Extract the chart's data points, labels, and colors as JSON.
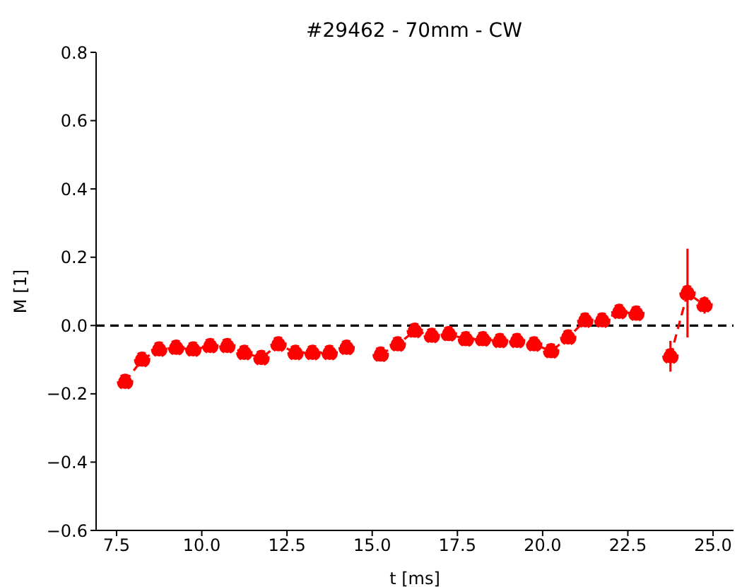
{
  "chart_data": {
    "type": "line",
    "title": "#29462 - 70mm - CW",
    "xlabel": "t [ms]",
    "ylabel": "M [1]",
    "x": [
      7.75,
      8.25,
      8.75,
      9.25,
      9.75,
      10.25,
      10.75,
      11.25,
      11.75,
      12.25,
      12.75,
      13.25,
      13.75,
      14.25,
      14.75,
      15.25,
      15.75,
      16.25,
      16.75,
      17.25,
      17.75,
      18.25,
      18.75,
      19.25,
      19.75,
      20.25,
      20.75,
      21.25,
      21.75,
      22.25,
      22.75,
      23.25,
      23.75,
      24.25,
      24.75
    ],
    "series": [
      {
        "color": "#ff0000",
        "values": [
          -0.165,
          -0.1,
          -0.07,
          -0.065,
          -0.07,
          -0.06,
          -0.06,
          -0.08,
          -0.095,
          -0.055,
          -0.08,
          -0.08,
          -0.08,
          -0.065,
          null,
          -0.085,
          -0.055,
          -0.015,
          -0.03,
          -0.025,
          -0.04,
          -0.04,
          -0.045,
          -0.045,
          -0.055,
          -0.075,
          -0.035,
          0.015,
          0.015,
          0.04,
          0.035,
          null,
          -0.09,
          0.095,
          0.06
        ],
        "errors": [
          null,
          null,
          null,
          null,
          null,
          null,
          null,
          null,
          null,
          null,
          null,
          null,
          null,
          null,
          null,
          null,
          null,
          null,
          null,
          null,
          null,
          null,
          null,
          null,
          null,
          null,
          null,
          null,
          null,
          null,
          null,
          null,
          0.045,
          0.13,
          0.025
        ]
      }
    ],
    "xlim": [
      6.9,
      25.6
    ],
    "xticks": [
      {
        "value": 7.5,
        "label": "7.5"
      },
      {
        "value": 10,
        "label": "10.0"
      },
      {
        "value": 12.5,
        "label": "12.5"
      },
      {
        "value": 15,
        "label": "15.0"
      },
      {
        "value": 17.5,
        "label": "17.5"
      },
      {
        "value": 20,
        "label": "20.0"
      },
      {
        "value": 22.5,
        "label": "22.5"
      },
      {
        "value": 25,
        "label": "25.0"
      }
    ],
    "ylim": [
      -0.6,
      0.8
    ],
    "yticks": [
      {
        "value": -0.6,
        "label": "−0.6"
      },
      {
        "value": -0.4,
        "label": "−0.4"
      },
      {
        "value": -0.2,
        "label": "−0.2"
      },
      {
        "value": 0,
        "label": "0.0"
      },
      {
        "value": 0.2,
        "label": "0.2"
      },
      {
        "value": 0.4,
        "label": "0.4"
      },
      {
        "value": 0.6,
        "label": "0.6"
      },
      {
        "value": 0.8,
        "label": "0.8"
      }
    ],
    "ref_lines": [
      {
        "axis": "y",
        "value": 0,
        "color": "#000000",
        "line_style": "dashed"
      }
    ],
    "marker": "circle",
    "line_style": "dashed",
    "grid": false,
    "legend": false
  }
}
